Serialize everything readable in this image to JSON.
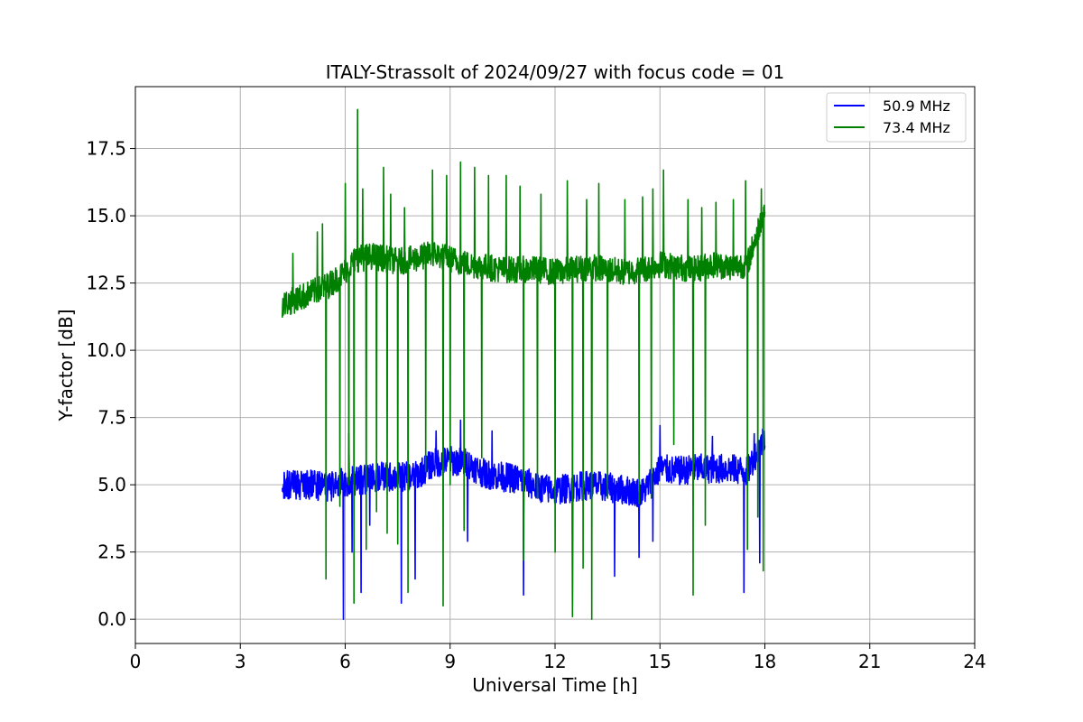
{
  "chart_data": {
    "type": "line",
    "title": "ITALY-Strassolt of 2024/09/27 with focus code = 01",
    "xlabel": "Universal Time [h]",
    "ylabel": "Y-factor [dB]",
    "xlim": [
      0,
      24
    ],
    "ylim": [
      -0.9,
      19.8
    ],
    "xticks": [
      0,
      3,
      6,
      9,
      12,
      15,
      18,
      21,
      24
    ],
    "xtick_labels": [
      "0",
      "3",
      "6",
      "9",
      "12",
      "15",
      "18",
      "21",
      "24"
    ],
    "yticks": [
      0,
      2.5,
      5,
      7.5,
      10,
      12.5,
      15,
      17.5
    ],
    "ytick_labels": [
      "0.0",
      "2.5",
      "5.0",
      "7.5",
      "10.0",
      "12.5",
      "15.0",
      "17.5"
    ],
    "grid": true,
    "legend_position": "top-right",
    "series": [
      {
        "name": "50.9 MHz",
        "color": "#0000ff",
        "base": [
          [
            4.2,
            5.0
          ],
          [
            5.0,
            5.0
          ],
          [
            5.5,
            4.9
          ],
          [
            6.0,
            5.1
          ],
          [
            6.5,
            5.2
          ],
          [
            7.0,
            5.3
          ],
          [
            7.5,
            5.3
          ],
          [
            8.0,
            5.3
          ],
          [
            8.5,
            5.8
          ],
          [
            9.0,
            5.9
          ],
          [
            9.5,
            5.8
          ],
          [
            10.0,
            5.4
          ],
          [
            10.5,
            5.3
          ],
          [
            11.0,
            5.2
          ],
          [
            11.5,
            4.9
          ],
          [
            12.0,
            4.8
          ],
          [
            12.5,
            4.9
          ],
          [
            13.0,
            5.0
          ],
          [
            13.5,
            4.9
          ],
          [
            14.0,
            4.8
          ],
          [
            14.5,
            4.7
          ],
          [
            15.0,
            5.6
          ],
          [
            15.5,
            5.5
          ],
          [
            16.0,
            5.6
          ],
          [
            16.5,
            5.6
          ],
          [
            17.0,
            5.6
          ],
          [
            17.5,
            5.5
          ],
          [
            18.0,
            6.8
          ]
        ],
        "noise": 0.55,
        "dips": [
          [
            5.95,
            0.0
          ],
          [
            6.2,
            2.5
          ],
          [
            6.45,
            1.0
          ],
          [
            6.7,
            3.5
          ],
          [
            7.6,
            0.6
          ],
          [
            8.0,
            1.5
          ],
          [
            9.5,
            2.9
          ],
          [
            11.1,
            0.9
          ],
          [
            12.5,
            0.5
          ],
          [
            13.7,
            1.6
          ],
          [
            14.4,
            2.3
          ],
          [
            14.8,
            2.9
          ],
          [
            17.4,
            1.0
          ],
          [
            17.85,
            2.1
          ]
        ],
        "spikes": [
          [
            6.1,
            6.9
          ],
          [
            8.6,
            7.0
          ],
          [
            9.3,
            7.4
          ],
          [
            10.2,
            7.0
          ],
          [
            15.0,
            7.2
          ],
          [
            16.5,
            6.8
          ],
          [
            17.7,
            6.9
          ]
        ]
      },
      {
        "name": "73.4 MHz",
        "color": "#008000",
        "base": [
          [
            4.2,
            11.7
          ],
          [
            4.8,
            12.0
          ],
          [
            5.5,
            12.4
          ],
          [
            5.9,
            12.8
          ],
          [
            6.3,
            13.4
          ],
          [
            6.8,
            13.5
          ],
          [
            7.5,
            13.3
          ],
          [
            8.0,
            13.4
          ],
          [
            8.5,
            13.6
          ],
          [
            9.0,
            13.4
          ],
          [
            9.5,
            13.2
          ],
          [
            10.0,
            13.1
          ],
          [
            10.5,
            13.0
          ],
          [
            11.0,
            13.0
          ],
          [
            11.5,
            13.0
          ],
          [
            12.0,
            12.9
          ],
          [
            12.5,
            13.0
          ],
          [
            13.0,
            13.1
          ],
          [
            13.5,
            13.0
          ],
          [
            14.0,
            12.9
          ],
          [
            14.5,
            13.0
          ],
          [
            15.0,
            13.2
          ],
          [
            15.5,
            13.1
          ],
          [
            16.0,
            13.0
          ],
          [
            16.5,
            13.2
          ],
          [
            17.0,
            13.1
          ],
          [
            17.5,
            13.2
          ],
          [
            18.0,
            15.3
          ]
        ],
        "noise": 0.5,
        "dips": [
          [
            5.45,
            1.5
          ],
          [
            5.85,
            4.2
          ],
          [
            6.1,
            5.0
          ],
          [
            6.25,
            0.6
          ],
          [
            6.6,
            2.6
          ],
          [
            6.9,
            4.0
          ],
          [
            7.2,
            3.2
          ],
          [
            7.5,
            2.8
          ],
          [
            7.8,
            1.0
          ],
          [
            8.3,
            5.5
          ],
          [
            8.8,
            0.5
          ],
          [
            9.0,
            5.0
          ],
          [
            9.4,
            3.3
          ],
          [
            9.9,
            6.0
          ],
          [
            10.6,
            8.0
          ],
          [
            11.1,
            2.2
          ],
          [
            11.5,
            4.5
          ],
          [
            12.0,
            2.5
          ],
          [
            12.35,
            4.8
          ],
          [
            12.5,
            0.1
          ],
          [
            12.8,
            1.9
          ],
          [
            13.05,
            0.0
          ],
          [
            13.5,
            4.5
          ],
          [
            14.0,
            3.0
          ],
          [
            14.4,
            4.3
          ],
          [
            14.75,
            4.5
          ],
          [
            15.4,
            6.5
          ],
          [
            15.95,
            0.9
          ],
          [
            16.3,
            3.5
          ],
          [
            16.6,
            2.8
          ],
          [
            17.1,
            1.4
          ],
          [
            17.5,
            2.6
          ],
          [
            17.8,
            3.8
          ],
          [
            17.95,
            1.8
          ]
        ],
        "spikes": [
          [
            4.5,
            13.6
          ],
          [
            5.2,
            14.4
          ],
          [
            5.35,
            14.7
          ],
          [
            6.0,
            16.2
          ],
          [
            6.35,
            18.95
          ],
          [
            6.5,
            16.0
          ],
          [
            7.1,
            16.8
          ],
          [
            7.3,
            15.8
          ],
          [
            7.7,
            15.3
          ],
          [
            8.5,
            16.7
          ],
          [
            8.9,
            16.5
          ],
          [
            9.3,
            17.0
          ],
          [
            9.7,
            16.8
          ],
          [
            10.1,
            16.5
          ],
          [
            10.6,
            16.5
          ],
          [
            11.0,
            16.1
          ],
          [
            11.6,
            15.8
          ],
          [
            12.35,
            16.3
          ],
          [
            12.9,
            15.6
          ],
          [
            13.25,
            16.2
          ],
          [
            14.0,
            15.6
          ],
          [
            14.5,
            15.7
          ],
          [
            14.8,
            16.0
          ],
          [
            15.1,
            16.7
          ],
          [
            15.8,
            15.6
          ],
          [
            16.2,
            15.3
          ],
          [
            16.6,
            15.5
          ],
          [
            17.1,
            15.6
          ],
          [
            17.45,
            16.3
          ],
          [
            17.9,
            16.0
          ]
        ]
      }
    ]
  }
}
